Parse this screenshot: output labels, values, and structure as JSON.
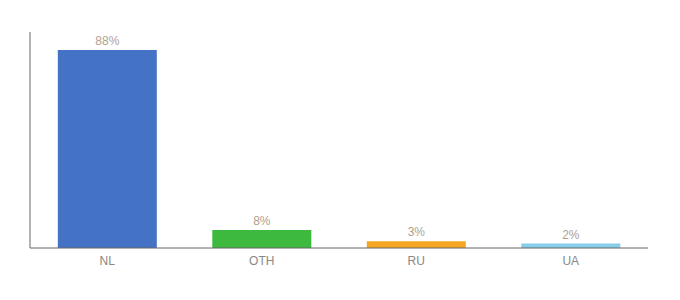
{
  "chart_data": {
    "type": "bar",
    "categories": [
      "NL",
      "OTH",
      "RU",
      "UA"
    ],
    "values": [
      88,
      8,
      3,
      2
    ],
    "value_labels": [
      "88%",
      "8%",
      "3%",
      "2%"
    ],
    "colors": [
      "#4472c4",
      "#3dba3d",
      "#f5a623",
      "#87ceeb"
    ],
    "ylim": [
      0,
      96
    ],
    "data_labels": true,
    "tick_labels": "x"
  }
}
